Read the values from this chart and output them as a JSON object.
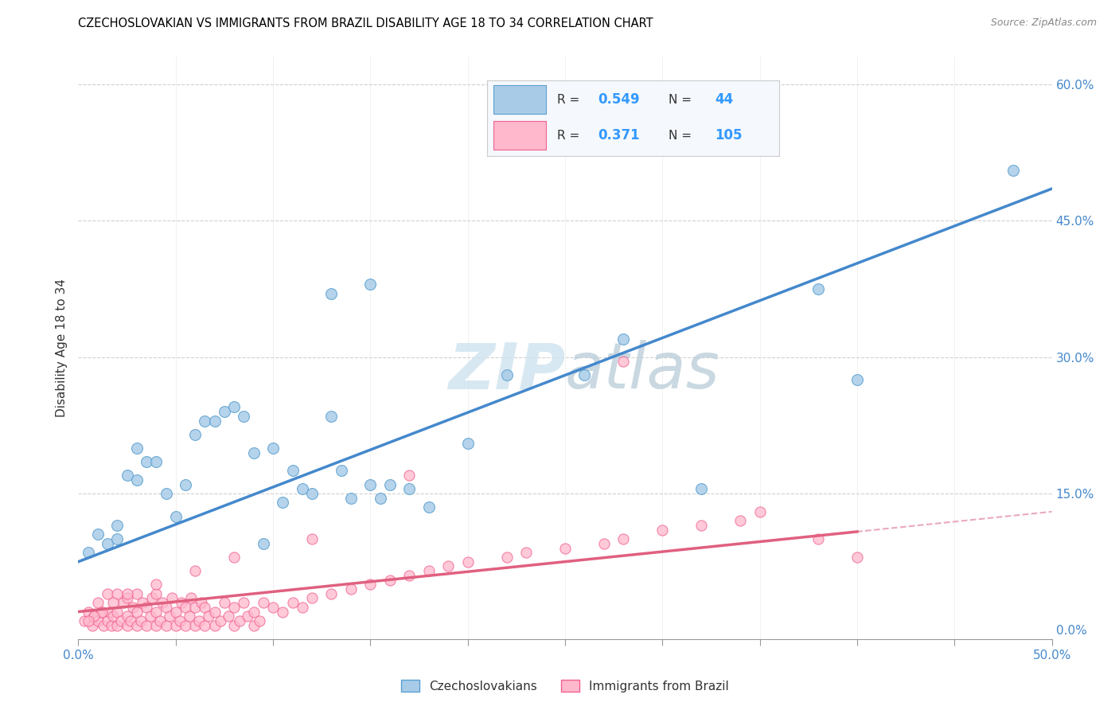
{
  "title": "CZECHOSLOVAKIAN VS IMMIGRANTS FROM BRAZIL DISABILITY AGE 18 TO 34 CORRELATION CHART",
  "source": "Source: ZipAtlas.com",
  "ylabel": "Disability Age 18 to 34",
  "xlim": [
    0.0,
    0.5
  ],
  "ylim": [
    -0.01,
    0.63
  ],
  "xticks": [
    0.0,
    0.05,
    0.1,
    0.15,
    0.2,
    0.25,
    0.3,
    0.35,
    0.4,
    0.45,
    0.5
  ],
  "yticks": [
    0.0,
    0.15,
    0.3,
    0.45,
    0.6
  ],
  "ytick_labels_right": [
    "0.0%",
    "15.0%",
    "30.0%",
    "45.0%",
    "60.0%"
  ],
  "R1": "0.549",
  "N1": "44",
  "R2": "0.371",
  "N2": "105",
  "color_czech_fill": "#a8cce8",
  "color_czech_edge": "#5aa0d0",
  "color_brazil_fill": "#ffb8cc",
  "color_brazil_edge": "#f06090",
  "color_line_blue": "#4488cc",
  "color_line_pink": "#e06080",
  "color_dashed_pink": "#e8a0b8",
  "background_color": "#ffffff",
  "grid_color": "#d0d0d0",
  "watermark_color": "#d0e4f0",
  "czech_x": [
    0.005,
    0.01,
    0.015,
    0.02,
    0.02,
    0.025,
    0.03,
    0.03,
    0.035,
    0.04,
    0.045,
    0.05,
    0.055,
    0.06,
    0.065,
    0.07,
    0.075,
    0.08,
    0.085,
    0.09,
    0.095,
    0.1,
    0.105,
    0.11,
    0.115,
    0.12,
    0.13,
    0.135,
    0.14,
    0.15,
    0.155,
    0.16,
    0.17,
    0.18,
    0.2,
    0.22,
    0.26,
    0.28,
    0.32,
    0.38,
    0.4,
    0.13,
    0.15,
    0.48
  ],
  "czech_y": [
    0.085,
    0.105,
    0.095,
    0.1,
    0.115,
    0.17,
    0.165,
    0.2,
    0.185,
    0.185,
    0.15,
    0.125,
    0.16,
    0.215,
    0.23,
    0.23,
    0.24,
    0.245,
    0.235,
    0.195,
    0.095,
    0.2,
    0.14,
    0.175,
    0.155,
    0.15,
    0.235,
    0.175,
    0.145,
    0.16,
    0.145,
    0.16,
    0.155,
    0.135,
    0.205,
    0.28,
    0.28,
    0.32,
    0.155,
    0.375,
    0.275,
    0.37,
    0.38,
    0.505
  ],
  "brazil_x": [
    0.003,
    0.005,
    0.007,
    0.008,
    0.01,
    0.01,
    0.012,
    0.013,
    0.015,
    0.015,
    0.016,
    0.017,
    0.018,
    0.02,
    0.02,
    0.02,
    0.022,
    0.023,
    0.025,
    0.025,
    0.025,
    0.027,
    0.028,
    0.03,
    0.03,
    0.03,
    0.032,
    0.033,
    0.035,
    0.035,
    0.037,
    0.038,
    0.04,
    0.04,
    0.04,
    0.042,
    0.043,
    0.045,
    0.045,
    0.047,
    0.048,
    0.05,
    0.05,
    0.052,
    0.053,
    0.055,
    0.055,
    0.057,
    0.058,
    0.06,
    0.06,
    0.062,
    0.063,
    0.065,
    0.065,
    0.067,
    0.07,
    0.07,
    0.073,
    0.075,
    0.077,
    0.08,
    0.08,
    0.083,
    0.085,
    0.087,
    0.09,
    0.09,
    0.093,
    0.095,
    0.1,
    0.105,
    0.11,
    0.115,
    0.12,
    0.13,
    0.14,
    0.15,
    0.16,
    0.17,
    0.18,
    0.19,
    0.2,
    0.22,
    0.23,
    0.25,
    0.27,
    0.28,
    0.3,
    0.32,
    0.34,
    0.35,
    0.38,
    0.4,
    0.28,
    0.17,
    0.12,
    0.08,
    0.06,
    0.04,
    0.025,
    0.018,
    0.012,
    0.008,
    0.005
  ],
  "brazil_y": [
    0.01,
    0.02,
    0.005,
    0.015,
    0.01,
    0.03,
    0.02,
    0.005,
    0.01,
    0.04,
    0.02,
    0.005,
    0.015,
    0.005,
    0.02,
    0.04,
    0.01,
    0.03,
    0.005,
    0.015,
    0.035,
    0.01,
    0.025,
    0.005,
    0.02,
    0.04,
    0.01,
    0.03,
    0.005,
    0.025,
    0.015,
    0.035,
    0.005,
    0.02,
    0.04,
    0.01,
    0.03,
    0.005,
    0.025,
    0.015,
    0.035,
    0.005,
    0.02,
    0.01,
    0.03,
    0.005,
    0.025,
    0.015,
    0.035,
    0.005,
    0.025,
    0.01,
    0.03,
    0.005,
    0.025,
    0.015,
    0.005,
    0.02,
    0.01,
    0.03,
    0.015,
    0.005,
    0.025,
    0.01,
    0.03,
    0.015,
    0.005,
    0.02,
    0.01,
    0.03,
    0.025,
    0.02,
    0.03,
    0.025,
    0.035,
    0.04,
    0.045,
    0.05,
    0.055,
    0.06,
    0.065,
    0.07,
    0.075,
    0.08,
    0.085,
    0.09,
    0.095,
    0.1,
    0.11,
    0.115,
    0.12,
    0.13,
    0.1,
    0.08,
    0.295,
    0.17,
    0.1,
    0.08,
    0.065,
    0.05,
    0.04,
    0.03,
    0.02,
    0.015,
    0.01
  ]
}
